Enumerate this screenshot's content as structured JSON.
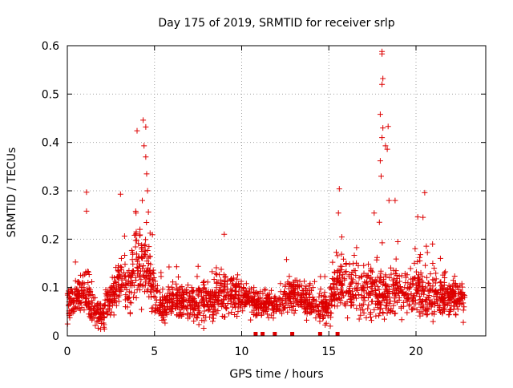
{
  "chart_data": {
    "type": "scatter",
    "title": "Day 175 of 2019, SRMTID for receiver srlp",
    "xlabel": "GPS time / hours",
    "ylabel": "SRMTID / TECUs",
    "xlim": [
      0,
      24
    ],
    "ylim": [
      0,
      0.6
    ],
    "x_ticks": [
      0,
      5,
      10,
      15,
      20
    ],
    "x_tick_labels": [
      "0",
      "5",
      "10",
      "15",
      "20"
    ],
    "y_ticks": [
      0,
      0.1,
      0.2,
      0.3,
      0.4,
      0.5,
      0.6
    ],
    "y_tick_labels": [
      "0",
      "0.1",
      "0.2",
      "0.3",
      "0.4",
      "0.5",
      "0.6"
    ],
    "grid": true,
    "marker": "plus",
    "series": [
      {
        "name": "SRMTID",
        "color": "#dd0000",
        "peaks": [
          {
            "x": 1.1,
            "y": 0.297
          },
          {
            "x": 1.1,
            "y": 0.258
          },
          {
            "x": 3.05,
            "y": 0.293
          },
          {
            "x": 4.0,
            "y": 0.424
          },
          {
            "x": 4.35,
            "y": 0.446
          },
          {
            "x": 4.5,
            "y": 0.432
          },
          {
            "x": 4.4,
            "y": 0.393
          },
          {
            "x": 4.5,
            "y": 0.37
          },
          {
            "x": 4.55,
            "y": 0.335
          },
          {
            "x": 4.6,
            "y": 0.3
          },
          {
            "x": 4.3,
            "y": 0.28
          },
          {
            "x": 4.65,
            "y": 0.256
          },
          {
            "x": 9.0,
            "y": 0.21
          },
          {
            "x": 15.6,
            "y": 0.304
          },
          {
            "x": 15.55,
            "y": 0.254
          },
          {
            "x": 17.6,
            "y": 0.254
          },
          {
            "x": 18.05,
            "y": 0.588
          },
          {
            "x": 18.05,
            "y": 0.583
          },
          {
            "x": 18.1,
            "y": 0.532
          },
          {
            "x": 18.05,
            "y": 0.52
          },
          {
            "x": 17.95,
            "y": 0.458
          },
          {
            "x": 18.1,
            "y": 0.43
          },
          {
            "x": 18.4,
            "y": 0.433
          },
          {
            "x": 18.05,
            "y": 0.41
          },
          {
            "x": 18.25,
            "y": 0.393
          },
          {
            "x": 18.35,
            "y": 0.386
          },
          {
            "x": 17.95,
            "y": 0.362
          },
          {
            "x": 18.0,
            "y": 0.33
          },
          {
            "x": 18.45,
            "y": 0.28
          },
          {
            "x": 18.8,
            "y": 0.28
          },
          {
            "x": 20.1,
            "y": 0.246
          },
          {
            "x": 20.5,
            "y": 0.296
          },
          {
            "x": 20.4,
            "y": 0.245
          },
          {
            "x": 20.95,
            "y": 0.19
          }
        ],
        "envelope": [
          {
            "x": 0.0,
            "mean": 0.065,
            "spread": 0.035
          },
          {
            "x": 0.5,
            "mean": 0.075,
            "spread": 0.04
          },
          {
            "x": 1.0,
            "mean": 0.085,
            "spread": 0.045
          },
          {
            "x": 1.5,
            "mean": 0.05,
            "spread": 0.035
          },
          {
            "x": 2.0,
            "mean": 0.04,
            "spread": 0.035
          },
          {
            "x": 2.5,
            "mean": 0.08,
            "spread": 0.045
          },
          {
            "x": 3.0,
            "mean": 0.11,
            "spread": 0.06
          },
          {
            "x": 3.5,
            "mean": 0.1,
            "spread": 0.06
          },
          {
            "x": 4.0,
            "mean": 0.15,
            "spread": 0.08
          },
          {
            "x": 4.5,
            "mean": 0.16,
            "spread": 0.09
          },
          {
            "x": 5.0,
            "mean": 0.08,
            "spread": 0.05
          },
          {
            "x": 5.5,
            "mean": 0.06,
            "spread": 0.035
          },
          {
            "x": 6.0,
            "mean": 0.07,
            "spread": 0.04
          },
          {
            "x": 7.0,
            "mean": 0.065,
            "spread": 0.04
          },
          {
            "x": 8.0,
            "mean": 0.07,
            "spread": 0.045
          },
          {
            "x": 9.0,
            "mean": 0.085,
            "spread": 0.05
          },
          {
            "x": 10.0,
            "mean": 0.085,
            "spread": 0.045
          },
          {
            "x": 11.0,
            "mean": 0.065,
            "spread": 0.03
          },
          {
            "x": 12.0,
            "mean": 0.065,
            "spread": 0.03
          },
          {
            "x": 13.0,
            "mean": 0.085,
            "spread": 0.04
          },
          {
            "x": 14.0,
            "mean": 0.065,
            "spread": 0.035
          },
          {
            "x": 15.0,
            "mean": 0.055,
            "spread": 0.035
          },
          {
            "x": 15.5,
            "mean": 0.12,
            "spread": 0.07
          },
          {
            "x": 16.0,
            "mean": 0.1,
            "spread": 0.07
          },
          {
            "x": 17.0,
            "mean": 0.09,
            "spread": 0.06
          },
          {
            "x": 18.0,
            "mean": 0.09,
            "spread": 0.07
          },
          {
            "x": 19.0,
            "mean": 0.09,
            "spread": 0.065
          },
          {
            "x": 20.0,
            "mean": 0.09,
            "spread": 0.06
          },
          {
            "x": 21.0,
            "mean": 0.085,
            "spread": 0.05
          },
          {
            "x": 22.0,
            "mean": 0.08,
            "spread": 0.045
          },
          {
            "x": 22.8,
            "mean": 0.07,
            "spread": 0.04
          }
        ],
        "x_range": [
          0.0,
          22.8
        ],
        "n_points": 2100
      }
    ],
    "axis_markers": {
      "color": "#dd0000",
      "x": [
        10.8,
        11.2,
        11.9,
        12.9,
        14.5,
        15.5
      ],
      "y": 0
    }
  }
}
